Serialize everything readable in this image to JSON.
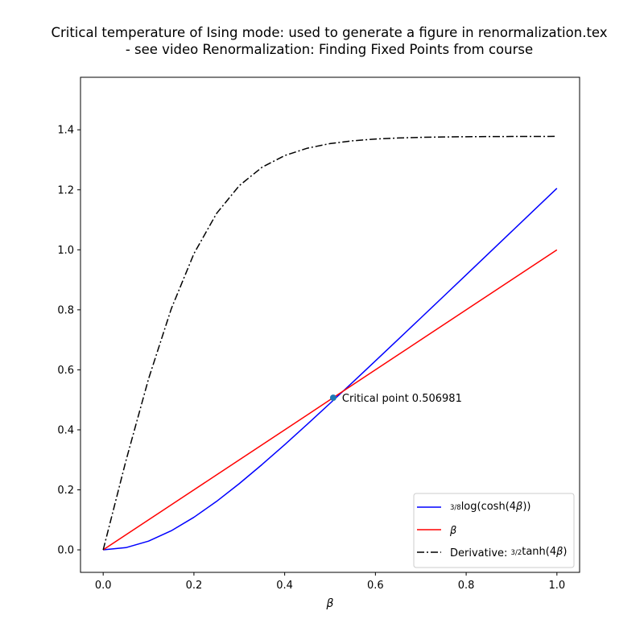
{
  "chart_data": {
    "type": "line",
    "title_line1": "Critical temperature of Ising mode: used to generate a figure in renormalization.tex",
    "title_line2": "- see video Renormalization: Finding Fixed Points from course",
    "xlabel": "β",
    "ylabel": "",
    "xlim": [
      -0.05,
      1.05
    ],
    "ylim": [
      -0.075,
      1.575
    ],
    "xticks": [
      "0.0",
      "0.2",
      "0.4",
      "0.6",
      "0.8",
      "1.0"
    ],
    "xtick_values": [
      0.0,
      0.2,
      0.4,
      0.6,
      0.8,
      1.0
    ],
    "yticks": [
      "0.0",
      "0.2",
      "0.4",
      "0.6",
      "0.8",
      "1.0",
      "1.2",
      "1.4"
    ],
    "ytick_values": [
      0.0,
      0.2,
      0.4,
      0.6,
      0.8,
      1.0,
      1.2,
      1.4
    ],
    "grid": false,
    "legend_position": "bottom-right",
    "x": [
      0.0,
      0.05,
      0.1,
      0.15,
      0.2,
      0.25,
      0.3,
      0.35,
      0.4,
      0.45,
      0.5,
      0.55,
      0.6,
      0.65,
      0.7,
      0.75,
      0.8,
      0.85,
      0.9,
      0.95,
      1.0
    ],
    "series": [
      {
        "legend_prefix": "3/8",
        "legend_pre": "",
        "legend_text": "log(cosh(4",
        "legend_var": "β",
        "legend_suffix": "))",
        "color": "#0000ff",
        "dash": "solid",
        "values": [
          0.0,
          0.0074,
          0.0291,
          0.0636,
          0.1086,
          0.1617,
          0.2208,
          0.2842,
          0.3505,
          0.4188,
          0.4884,
          0.5588,
          0.6298,
          0.7012,
          0.7728,
          0.8446,
          0.9166,
          0.9887,
          1.0607,
          1.1328,
          1.2049
        ]
      },
      {
        "legend_prefix": "",
        "legend_pre": "",
        "legend_text": "",
        "legend_var": "β",
        "legend_suffix": "",
        "color": "#ff0000",
        "dash": "solid",
        "values": [
          0.0,
          0.05,
          0.1,
          0.15,
          0.2,
          0.25,
          0.3,
          0.35,
          0.4,
          0.45,
          0.5,
          0.55,
          0.6,
          0.65,
          0.7,
          0.75,
          0.8,
          0.85,
          0.9,
          0.95,
          1.0
        ]
      },
      {
        "legend_prefix": "3/2",
        "legend_pre": "Derivative: ",
        "legend_text": "tanh(4",
        "legend_var": "β",
        "legend_suffix": ")",
        "color": "#000000",
        "dash": "dashdot",
        "values": [
          0.0,
          0.2961,
          0.57,
          0.8032,
          0.9871,
          1.1214,
          1.2139,
          1.275,
          1.3141,
          1.3387,
          1.354,
          1.3634,
          1.3692,
          1.3727,
          1.3748,
          1.3761,
          1.3769,
          1.3774,
          1.3777,
          1.3779,
          1.378
        ]
      }
    ],
    "critical_point": {
      "x": 0.506981,
      "y": 0.506981,
      "label": "Critical point 0.506981",
      "color": "#1f77b4"
    }
  }
}
